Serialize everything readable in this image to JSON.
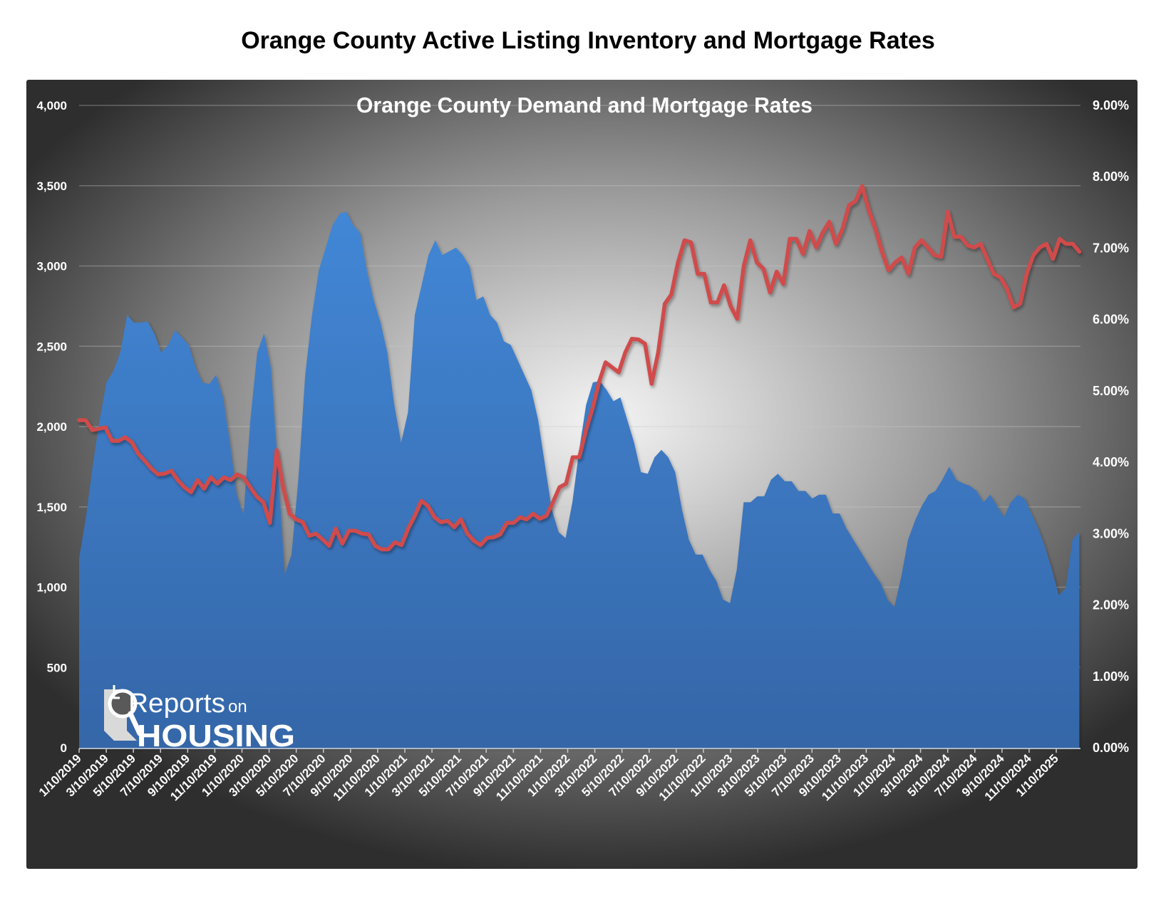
{
  "title": "Orange County Active Listing Inventory and Mortgage Rates",
  "colors": {
    "inventory_area_top": "#4287d6",
    "inventory_area_bottom": "#3566a8",
    "rate_line": "#d04b4b",
    "axis_text": "#ffffff",
    "gridline": "#c8c8c8"
  },
  "logo": {
    "line1_big": "Reports",
    "line1_small": "on",
    "line2": "HOUSING"
  },
  "chart_data": {
    "type": "area+line",
    "title": "Orange County Demand and Mortgage Rates",
    "xlabel": "",
    "x_unit": "months since 1/10/2019",
    "x_tick_labels": [
      "1/10/2019",
      "3/10/2019",
      "5/10/2019",
      "7/10/2019",
      "9/10/2019",
      "11/10/2019",
      "1/10/2020",
      "3/10/2020",
      "5/10/2020",
      "7/10/2020",
      "9/10/2020",
      "11/10/2020",
      "1/10/2021",
      "3/10/2021",
      "5/10/2021",
      "7/10/2021",
      "9/10/2021",
      "11/10/2021",
      "1/10/2022",
      "3/10/2022",
      "5/10/2022",
      "7/10/2022",
      "9/10/2022",
      "11/10/2022",
      "1/10/2023",
      "3/10/2023",
      "5/10/2023",
      "7/10/2023",
      "9/10/2023",
      "11/10/2023",
      "1/10/2024",
      "3/10/2024",
      "5/10/2024",
      "7/10/2024",
      "9/10/2024",
      "11/10/2024",
      "1/10/2025"
    ],
    "x_tick_months": [
      0,
      2,
      4,
      6,
      8,
      10,
      12,
      14,
      16,
      18,
      20,
      22,
      24,
      26,
      28,
      30,
      32,
      34,
      36,
      38,
      40,
      42,
      44,
      46,
      48,
      50,
      52,
      54,
      56,
      58,
      60,
      62,
      64,
      66,
      68,
      70,
      72
    ],
    "xlim": [
      0,
      73.7
    ],
    "y_left": {
      "label": "",
      "ylim": [
        0,
        4000
      ],
      "ticks": [
        0,
        500,
        1000,
        1500,
        2000,
        2500,
        3000,
        3500,
        4000
      ],
      "tick_labels": [
        "0",
        "500",
        "1,000",
        "1,500",
        "2,000",
        "2,500",
        "3,000",
        "3,500",
        "4,000"
      ]
    },
    "y_right": {
      "label": "",
      "ylim": [
        0,
        9
      ],
      "ticks": [
        0,
        1,
        2,
        3,
        4,
        5,
        6,
        7,
        8,
        9
      ],
      "tick_labels": [
        "0.00%",
        "1.00%",
        "2.00%",
        "3.00%",
        "4.00%",
        "5.00%",
        "6.00%",
        "7.00%",
        "8.00%",
        "9.00%"
      ]
    },
    "grid": true,
    "legend": "none",
    "series": [
      {
        "name": "Active Listing Inventory",
        "type": "area",
        "axis": "left",
        "values": [
          1180,
          1436,
          1762,
          2042,
          2275,
          2345,
          2461,
          2695,
          2648,
          2648,
          2655,
          2578,
          2461,
          2508,
          2601,
          2555,
          2508,
          2368,
          2275,
          2265,
          2321,
          2182,
          1902,
          1576,
          1450,
          2042,
          2461,
          2580,
          2368,
          1762,
          1080,
          1203,
          1669,
          2321,
          2695,
          2974,
          3114,
          3254,
          3324,
          3338,
          3254,
          3207,
          2974,
          2788,
          2648,
          2461,
          2135,
          1900,
          2088,
          2695,
          2881,
          3068,
          3161,
          3068,
          3091,
          3114,
          3068,
          2998,
          2788,
          2811,
          2695,
          2648,
          2531,
          2508,
          2415,
          2321,
          2228,
          2042,
          1762,
          1483,
          1343,
          1305,
          1529,
          1855,
          2135,
          2275,
          2284,
          2228,
          2158,
          2182,
          2042,
          1902,
          1716,
          1706,
          1809,
          1855,
          1809,
          1716,
          1483,
          1296,
          1203,
          1203,
          1110,
          1040,
          923,
          900,
          1110,
          1529,
          1529,
          1566,
          1566,
          1669,
          1706,
          1660,
          1660,
          1599,
          1599,
          1552,
          1576,
          1576,
          1459,
          1459,
          1366,
          1296,
          1226,
          1156,
          1086,
          1025,
          923,
          877,
          1063,
          1296,
          1413,
          1506,
          1576,
          1599,
          1669,
          1750,
          1669,
          1646,
          1632,
          1599,
          1529,
          1576,
          1506,
          1436,
          1529,
          1576,
          1552,
          1459,
          1366,
          1249,
          1110,
          950,
          993,
          1296,
          1343
        ]
      },
      {
        "name": "30-Year Mortgage Rate",
        "type": "line",
        "axis": "right",
        "values": [
          4.59,
          4.59,
          4.45,
          4.47,
          4.49,
          4.3,
          4.3,
          4.35,
          4.28,
          4.12,
          4.02,
          3.91,
          3.83,
          3.84,
          3.88,
          3.75,
          3.65,
          3.58,
          3.75,
          3.63,
          3.79,
          3.7,
          3.79,
          3.75,
          3.83,
          3.79,
          3.65,
          3.52,
          3.44,
          3.15,
          4.17,
          3.65,
          3.28,
          3.2,
          3.16,
          2.97,
          3.0,
          2.92,
          2.83,
          3.07,
          2.86,
          3.04,
          3.04,
          3.0,
          2.99,
          2.83,
          2.78,
          2.78,
          2.88,
          2.84,
          3.07,
          3.25,
          3.46,
          3.39,
          3.23,
          3.16,
          3.18,
          3.09,
          3.2,
          3.0,
          2.9,
          2.84,
          2.94,
          2.95,
          2.99,
          3.15,
          3.15,
          3.23,
          3.2,
          3.28,
          3.21,
          3.25,
          3.44,
          3.65,
          3.7,
          4.07,
          4.07,
          4.44,
          4.75,
          5.12,
          5.4,
          5.33,
          5.26,
          5.54,
          5.73,
          5.72,
          5.66,
          5.1,
          5.54,
          6.22,
          6.35,
          6.8,
          7.11,
          7.08,
          6.64,
          6.64,
          6.24,
          6.24,
          6.48,
          6.19,
          6.01,
          6.75,
          7.11,
          6.8,
          6.71,
          6.38,
          6.67,
          6.5,
          7.13,
          7.13,
          6.92,
          7.24,
          7.01,
          7.22,
          7.37,
          7.06,
          7.27,
          7.6,
          7.66,
          7.87,
          7.53,
          7.27,
          6.95,
          6.69,
          6.8,
          6.87,
          6.64,
          7.01,
          7.11,
          7.01,
          6.9,
          6.88,
          7.51,
          7.16,
          7.16,
          7.04,
          7.01,
          7.06,
          6.85,
          6.64,
          6.59,
          6.43,
          6.17,
          6.22,
          6.64,
          6.9,
          7.01,
          7.06,
          6.85,
          7.13,
          7.06,
          7.06,
          6.95
        ]
      }
    ]
  }
}
